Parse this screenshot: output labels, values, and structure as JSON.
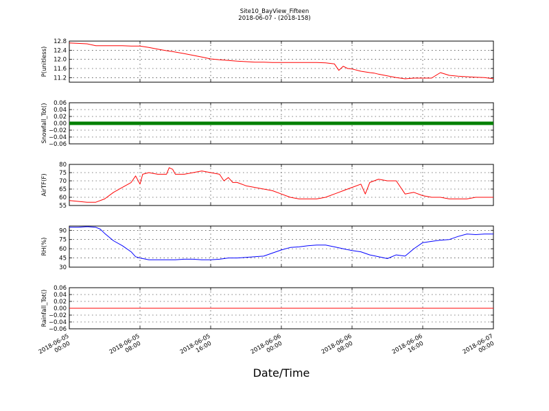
{
  "figure": {
    "title": "Site10_BayView_Fifteen",
    "subtitle": "2018-06-07 - (2018-158)",
    "xlabel": "Date/Time"
  },
  "chart_data": [
    {
      "type": "line",
      "ylabel": "P(unitless)",
      "ylim": [
        11.0,
        12.8
      ],
      "yticks": [
        "12.8",
        "12.4",
        "12.0",
        "11.6",
        "11.2"
      ],
      "ytick_values": [
        12.8,
        12.4,
        12.0,
        11.6,
        11.2
      ],
      "color": "#ff0000",
      "grid": true,
      "x_hours": [
        0,
        2,
        3,
        4,
        5,
        6,
        7,
        8,
        9,
        10,
        11,
        12,
        13,
        14,
        15,
        16,
        17,
        18,
        19,
        20,
        21,
        22,
        23,
        24,
        25,
        26,
        27,
        28,
        29,
        30,
        30.5,
        31,
        31.5,
        32,
        33,
        34,
        34.5,
        35,
        36,
        37,
        38,
        39,
        40,
        41,
        42,
        43,
        44,
        45,
        46,
        47,
        48
      ],
      "values": [
        12.72,
        12.68,
        12.6,
        12.6,
        12.6,
        12.6,
        12.58,
        12.58,
        12.52,
        12.45,
        12.38,
        12.32,
        12.25,
        12.18,
        12.1,
        12.02,
        11.98,
        11.95,
        11.92,
        11.9,
        11.88,
        11.88,
        11.86,
        11.86,
        11.86,
        11.86,
        11.86,
        11.86,
        11.85,
        11.8,
        11.52,
        11.7,
        11.6,
        11.58,
        11.48,
        11.42,
        11.4,
        11.35,
        11.28,
        11.2,
        11.15,
        11.18,
        11.18,
        11.18,
        11.42,
        11.3,
        11.26,
        11.24,
        11.22,
        11.2,
        11.15
      ]
    },
    {
      "type": "scatter",
      "ylabel": "Snowfall_Tot()",
      "ylim": [
        -0.06,
        0.06
      ],
      "yticks": [
        "0.06",
        "0.04",
        "0.02",
        "0.00",
        "−0.02",
        "−0.04",
        "−0.06"
      ],
      "ytick_values": [
        0.06,
        0.04,
        0.02,
        0.0,
        -0.02,
        -0.04,
        -0.06
      ],
      "color": "#008000",
      "grid": true,
      "x_hours": [
        0,
        48
      ],
      "values": [
        0.0,
        0.0
      ]
    },
    {
      "type": "line",
      "ylabel": "AirTF(F)",
      "ylim": [
        55,
        80
      ],
      "yticks": [
        "80",
        "75",
        "70",
        "65",
        "60",
        "55"
      ],
      "ytick_values": [
        80,
        75,
        70,
        65,
        60,
        55
      ],
      "color": "#ff0000",
      "grid": true,
      "x_hours": [
        0,
        1,
        2,
        3,
        4,
        5,
        6,
        7,
        7.5,
        8,
        8.3,
        9,
        10,
        11,
        11.3,
        11.7,
        12,
        13,
        14,
        15,
        16,
        17,
        17.5,
        18,
        18.5,
        19,
        20,
        21,
        22,
        23,
        24,
        25,
        26,
        27,
        28,
        29,
        30,
        30.5,
        31,
        32,
        33,
        33.5,
        34,
        34.5,
        35,
        36,
        37,
        38,
        39,
        40,
        41,
        42,
        43,
        44,
        45,
        46,
        47,
        48
      ],
      "values": [
        58,
        57.5,
        57,
        57,
        59,
        63,
        66,
        69,
        73,
        68,
        74,
        75,
        74,
        74,
        78,
        77,
        74,
        74,
        75,
        76,
        75,
        74,
        70,
        72,
        69,
        69,
        67,
        66,
        65,
        64,
        62,
        60,
        59,
        59,
        59,
        60,
        62,
        63,
        64,
        66,
        68,
        62,
        69,
        70,
        71,
        70,
        70,
        62,
        63,
        61,
        60,
        60,
        59,
        59,
        59,
        60,
        60,
        60
      ]
    },
    {
      "type": "line",
      "ylabel": "RH(%)",
      "ylim": [
        30,
        97
      ],
      "yticks": [
        "90",
        "75",
        "60",
        "45",
        "30"
      ],
      "ytick_values": [
        90,
        75,
        60,
        45,
        30
      ],
      "color": "#0000ff",
      "grid": true,
      "x_hours": [
        0,
        1,
        2,
        3,
        3.5,
        4,
        5,
        6,
        7,
        7.5,
        8,
        9,
        10,
        11,
        12,
        13,
        14,
        15,
        16,
        17,
        18,
        19,
        20,
        21,
        22,
        23,
        24,
        25,
        26,
        27,
        28,
        29,
        30,
        31,
        32,
        33,
        34,
        35,
        36,
        37,
        38,
        39,
        40,
        41,
        42,
        43,
        44,
        45,
        46,
        47,
        48
      ],
      "values": [
        95,
        95,
        96,
        95,
        92,
        85,
        73,
        65,
        55,
        47,
        45,
        42,
        42,
        42,
        42,
        43,
        43,
        42,
        42,
        43,
        45,
        45,
        46,
        47,
        48,
        53,
        58,
        62,
        63,
        65,
        66,
        66,
        63,
        60,
        57,
        55,
        50,
        47,
        44,
        50,
        48,
        60,
        70,
        72,
        74,
        75,
        80,
        84,
        83,
        84,
        84
      ]
    },
    {
      "type": "line",
      "ylabel": "Rainfall_Tot()",
      "ylim": [
        -0.06,
        0.06
      ],
      "yticks": [
        "0.06",
        "0.04",
        "0.02",
        "0.00",
        "−0.02",
        "−0.04",
        "−0.06"
      ],
      "ytick_values": [
        0.06,
        0.04,
        0.02,
        0.0,
        -0.02,
        -0.04,
        -0.06
      ],
      "color": "#ff0000",
      "grid": true,
      "x_hours": [
        0,
        48
      ],
      "values": [
        0.0,
        0.0
      ]
    }
  ],
  "x_axis": {
    "range_hours": [
      0,
      48
    ],
    "tick_hours": [
      0,
      8,
      16,
      24,
      32,
      40,
      48
    ],
    "tick_labels": [
      [
        "2018-06-05",
        "00:00"
      ],
      [
        "2018-06-05",
        "08:00"
      ],
      [
        "2018-06-05",
        "16:00"
      ],
      [
        "2018-06-06",
        "00:00"
      ],
      [
        "2018-06-06",
        "08:00"
      ],
      [
        "2018-06-06",
        "16:00"
      ],
      [
        "2018-06-07",
        "00:00"
      ]
    ]
  }
}
